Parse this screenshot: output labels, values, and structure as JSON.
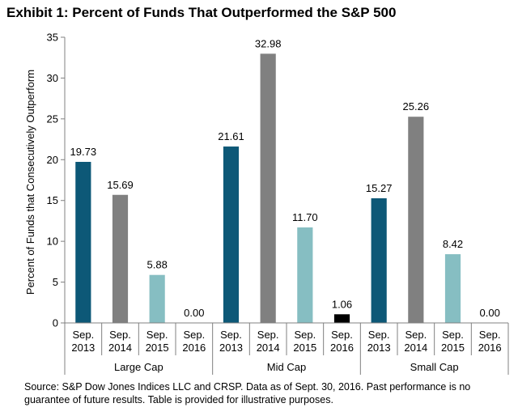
{
  "chart_data": {
    "type": "bar",
    "title": "Exhibit 1: Percent of Funds That Outperformed the S&P 500",
    "ylabel": "Percent of Funds that Consecutively Outperform",
    "xlabel": "",
    "ylim": [
      0,
      35
    ],
    "yticks": [
      0,
      5,
      10,
      15,
      20,
      25,
      30,
      35
    ],
    "grid": false,
    "legend": "none",
    "groups": [
      {
        "name": "Large Cap",
        "bars": [
          {
            "label": "Sep. 2013",
            "value": 19.73,
            "display": "19.73"
          },
          {
            "label": "Sep. 2014",
            "value": 15.69,
            "display": "15.69"
          },
          {
            "label": "Sep. 2015",
            "value": 5.88,
            "display": "5.88"
          },
          {
            "label": "Sep. 2016",
            "value": 0.0,
            "display": "0.00"
          }
        ]
      },
      {
        "name": "Mid Cap",
        "bars": [
          {
            "label": "Sep. 2013",
            "value": 21.61,
            "display": "21.61"
          },
          {
            "label": "Sep. 2014",
            "value": 32.98,
            "display": "32.98"
          },
          {
            "label": "Sep. 2015",
            "value": 11.7,
            "display": "11.70"
          },
          {
            "label": "Sep. 2016",
            "value": 1.06,
            "display": "1.06"
          }
        ]
      },
      {
        "name": "Small Cap",
        "bars": [
          {
            "label": "Sep. 2013",
            "value": 15.27,
            "display": "15.27"
          },
          {
            "label": "Sep. 2014",
            "value": 25.26,
            "display": "25.26"
          },
          {
            "label": "Sep. 2015",
            "value": 8.42,
            "display": "8.42"
          },
          {
            "label": "Sep. 2016",
            "value": 0.0,
            "display": "0.00"
          }
        ]
      }
    ],
    "colors": {
      "Sep. 2013": "#0d5877",
      "Sep. 2014": "#808080",
      "Sep. 2015": "#86bec2",
      "Sep. 2016": "#000000"
    }
  },
  "source_note": "Source: S&P Dow Jones Indices LLC and CRSP.  Data as of Sept. 30, 2016.  Past performance is no guarantee of future results.  Table is provided for illustrative purposes."
}
